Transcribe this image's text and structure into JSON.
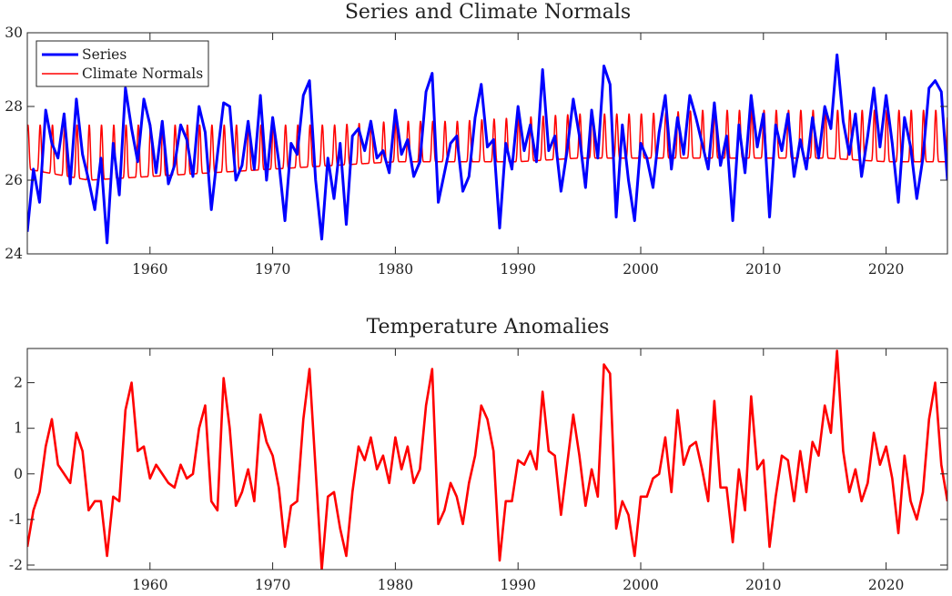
{
  "chart_data": [
    {
      "type": "line",
      "title": "Series and Climate Normals",
      "xlabel": "",
      "ylabel": "",
      "xlim": [
        1950.0,
        2025.0
      ],
      "ylim": [
        24,
        30
      ],
      "xticks": [
        1960,
        1970,
        1980,
        1990,
        2000,
        2010,
        2020
      ],
      "yticks": [
        24,
        26,
        28,
        30
      ],
      "grid": false,
      "legend_position": "top-left",
      "series": [
        {
          "name": "Series",
          "color": "#0000ff",
          "x": [
            1950.0,
            1950.5,
            1951.0,
            1951.5,
            1952.0,
            1952.5,
            1953.0,
            1953.5,
            1954.0,
            1954.5,
            1955.0,
            1955.5,
            1956.0,
            1956.5,
            1957.0,
            1957.5,
            1958.0,
            1958.5,
            1959.0,
            1959.5,
            1960.0,
            1960.5,
            1961.0,
            1961.5,
            1962.0,
            1962.5,
            1963.0,
            1963.5,
            1964.0,
            1964.5,
            1965.0,
            1965.5,
            1966.0,
            1966.5,
            1967.0,
            1967.5,
            1968.0,
            1968.5,
            1969.0,
            1969.5,
            1970.0,
            1970.5,
            1971.0,
            1971.5,
            1972.0,
            1972.5,
            1973.0,
            1973.5,
            1974.0,
            1974.5,
            1975.0,
            1975.5,
            1976.0,
            1976.5,
            1977.0,
            1977.5,
            1978.0,
            1978.5,
            1979.0,
            1979.5,
            1980.0,
            1980.5,
            1981.0,
            1981.5,
            1982.0,
            1982.5,
            1983.0,
            1983.5,
            1984.0,
            1984.5,
            1985.0,
            1985.5,
            1986.0,
            1986.5,
            1987.0,
            1987.5,
            1988.0,
            1988.5,
            1989.0,
            1989.5,
            1990.0,
            1990.5,
            1991.0,
            1991.5,
            1992.0,
            1992.5,
            1993.0,
            1993.5,
            1994.0,
            1994.5,
            1995.0,
            1995.5,
            1996.0,
            1996.5,
            1997.0,
            1997.5,
            1998.0,
            1998.5,
            1999.0,
            1999.5,
            2000.0,
            2000.5,
            2001.0,
            2001.5,
            2002.0,
            2002.5,
            2003.0,
            2003.5,
            2004.0,
            2004.5,
            2005.0,
            2005.5,
            2006.0,
            2006.5,
            2007.0,
            2007.5,
            2008.0,
            2008.5,
            2009.0,
            2009.5,
            2010.0,
            2010.5,
            2011.0,
            2011.5,
            2012.0,
            2012.5,
            2013.0,
            2013.5,
            2014.0,
            2014.5,
            2015.0,
            2015.5,
            2016.0,
            2016.5,
            2017.0,
            2017.5,
            2018.0,
            2018.5,
            2019.0,
            2019.5,
            2020.0,
            2020.5,
            2021.0,
            2021.5,
            2022.0,
            2022.5,
            2023.0,
            2023.5,
            2024.0,
            2024.5,
            2025.0
          ],
          "values": [
            24.6,
            26.3,
            25.4,
            27.9,
            27.0,
            26.6,
            27.8,
            25.9,
            28.2,
            26.7,
            26.0,
            25.2,
            26.6,
            24.3,
            27.0,
            25.6,
            28.5,
            27.4,
            26.5,
            28.2,
            27.5,
            26.2,
            27.6,
            25.9,
            26.4,
            27.5,
            27.1,
            26.1,
            28.0,
            27.3,
            25.2,
            26.7,
            28.1,
            28.0,
            26.0,
            26.4,
            27.6,
            26.3,
            28.3,
            26.0,
            27.7,
            26.5,
            24.9,
            27.0,
            26.7,
            28.3,
            28.7,
            26.0,
            24.4,
            26.6,
            25.5,
            27.0,
            24.8,
            27.2,
            27.4,
            26.8,
            27.6,
            26.6,
            26.8,
            26.2,
            27.9,
            26.7,
            27.1,
            26.1,
            26.5,
            28.4,
            28.9,
            25.4,
            26.2,
            27.0,
            27.2,
            25.7,
            26.1,
            27.7,
            28.6,
            26.9,
            27.1,
            24.7,
            27.0,
            26.3,
            28.0,
            26.8,
            27.5,
            26.5,
            29.0,
            26.8,
            27.2,
            25.7,
            26.8,
            28.2,
            27.2,
            25.8,
            27.9,
            26.6,
            29.1,
            28.6,
            25.0,
            27.5,
            26.0,
            24.9,
            27.0,
            26.6,
            25.8,
            27.3,
            28.3,
            26.3,
            27.7,
            26.7,
            28.3,
            27.7,
            27.0,
            26.3,
            28.1,
            26.4,
            27.2,
            24.9,
            27.5,
            26.2,
            28.3,
            26.9,
            27.8,
            25.0,
            27.5,
            26.8,
            27.8,
            26.1,
            27.1,
            26.3,
            27.7,
            26.6,
            28.0,
            27.4,
            29.4,
            27.6,
            26.7,
            27.8,
            26.1,
            27.2,
            28.5,
            26.9,
            28.3,
            27.0,
            25.4,
            27.7,
            26.9,
            25.5,
            26.6,
            28.5,
            28.7,
            28.4,
            26.0
          ]
        },
        {
          "name": "Climate Normals",
          "color": "#ff0000",
          "period_years": 1,
          "x": [
            1950.0,
            1955.0,
            1960.0,
            1965.0,
            1970.0,
            1975.0,
            1980.0,
            1985.0,
            1990.0,
            1995.0,
            2000.0,
            2005.0,
            2010.0,
            2015.0,
            2020.0,
            2025.0
          ],
          "annual_min": [
            26.3,
            26.0,
            26.1,
            26.2,
            26.3,
            26.4,
            26.5,
            26.5,
            26.5,
            26.6,
            26.6,
            26.6,
            26.6,
            26.6,
            26.5,
            26.5
          ],
          "annual_max": [
            27.5,
            27.5,
            27.5,
            27.5,
            27.5,
            27.5,
            27.6,
            27.6,
            27.7,
            27.8,
            27.8,
            27.9,
            27.9,
            27.9,
            27.9,
            27.9
          ]
        }
      ]
    },
    {
      "type": "line",
      "title": "Temperature Anomalies",
      "xlabel": "",
      "ylabel": "",
      "xlim": [
        1950.0,
        2025.0
      ],
      "ylim": [
        -2.1,
        2.75
      ],
      "xticks": [
        1960,
        1970,
        1980,
        1990,
        2000,
        2010,
        2020
      ],
      "yticks": [
        -2,
        -1,
        0,
        1,
        2
      ],
      "grid": false,
      "series": [
        {
          "name": "",
          "color": "#ff0000",
          "x": [
            1950.0,
            1950.5,
            1951.0,
            1951.5,
            1952.0,
            1952.5,
            1953.0,
            1953.5,
            1954.0,
            1954.5,
            1955.0,
            1955.5,
            1956.0,
            1956.5,
            1957.0,
            1957.5,
            1958.0,
            1958.5,
            1959.0,
            1959.5,
            1960.0,
            1960.5,
            1961.0,
            1961.5,
            1962.0,
            1962.5,
            1963.0,
            1963.5,
            1964.0,
            1964.5,
            1965.0,
            1965.5,
            1966.0,
            1966.5,
            1967.0,
            1967.5,
            1968.0,
            1968.5,
            1969.0,
            1969.5,
            1970.0,
            1970.5,
            1971.0,
            1971.5,
            1972.0,
            1972.5,
            1973.0,
            1973.5,
            1974.0,
            1974.5,
            1975.0,
            1975.5,
            1976.0,
            1976.5,
            1977.0,
            1977.5,
            1978.0,
            1978.5,
            1979.0,
            1979.5,
            1980.0,
            1980.5,
            1981.0,
            1981.5,
            1982.0,
            1982.5,
            1983.0,
            1983.5,
            1984.0,
            1984.5,
            1985.0,
            1985.5,
            1986.0,
            1986.5,
            1987.0,
            1987.5,
            1988.0,
            1988.5,
            1989.0,
            1989.5,
            1990.0,
            1990.5,
            1991.0,
            1991.5,
            1992.0,
            1992.5,
            1993.0,
            1993.5,
            1994.0,
            1994.5,
            1995.0,
            1995.5,
            1996.0,
            1996.5,
            1997.0,
            1997.5,
            1998.0,
            1998.5,
            1999.0,
            1999.5,
            2000.0,
            2000.5,
            2001.0,
            2001.5,
            2002.0,
            2002.5,
            2003.0,
            2003.5,
            2004.0,
            2004.5,
            2005.0,
            2005.5,
            2006.0,
            2006.5,
            2007.0,
            2007.5,
            2008.0,
            2008.5,
            2009.0,
            2009.5,
            2010.0,
            2010.5,
            2011.0,
            2011.5,
            2012.0,
            2012.5,
            2013.0,
            2013.5,
            2014.0,
            2014.5,
            2015.0,
            2015.5,
            2016.0,
            2016.5,
            2017.0,
            2017.5,
            2018.0,
            2018.5,
            2019.0,
            2019.5,
            2020.0,
            2020.5,
            2021.0,
            2021.5,
            2022.0,
            2022.5,
            2023.0,
            2023.5,
            2024.0,
            2024.5,
            2025.0
          ],
          "values": [
            -1.6,
            -0.8,
            -0.4,
            0.6,
            1.2,
            0.2,
            0.0,
            -0.2,
            0.9,
            0.5,
            -0.8,
            -0.6,
            -0.6,
            -1.8,
            -0.5,
            -0.6,
            1.4,
            2.0,
            0.5,
            0.6,
            -0.1,
            0.2,
            0.0,
            -0.2,
            -0.3,
            0.2,
            -0.1,
            0.0,
            1.0,
            1.5,
            -0.6,
            -0.8,
            2.1,
            1.0,
            -0.7,
            -0.4,
            0.1,
            -0.6,
            1.3,
            0.7,
            0.4,
            -0.3,
            -1.6,
            -0.7,
            -0.6,
            1.2,
            2.3,
            0.1,
            -2.1,
            -0.5,
            -0.4,
            -1.2,
            -1.8,
            -0.4,
            0.6,
            0.3,
            0.8,
            0.1,
            0.4,
            -0.2,
            0.8,
            0.1,
            0.6,
            -0.2,
            0.1,
            1.5,
            2.3,
            -1.1,
            -0.8,
            -0.2,
            -0.5,
            -1.1,
            -0.2,
            0.4,
            1.5,
            1.2,
            0.5,
            -1.9,
            -0.6,
            -0.6,
            0.3,
            0.2,
            0.5,
            0.1,
            1.8,
            0.5,
            0.4,
            -0.9,
            0.2,
            1.3,
            0.4,
            -0.7,
            0.1,
            -0.5,
            2.4,
            2.2,
            -1.2,
            -0.6,
            -0.9,
            -1.8,
            -0.5,
            -0.5,
            -0.1,
            0.0,
            0.8,
            -0.4,
            1.4,
            0.2,
            0.6,
            0.7,
            0.1,
            -0.6,
            1.6,
            -0.3,
            -0.3,
            -1.5,
            0.1,
            -0.8,
            1.7,
            0.1,
            0.3,
            -1.6,
            -0.5,
            0.4,
            0.3,
            -0.6,
            0.5,
            -0.4,
            0.7,
            0.4,
            1.5,
            0.9,
            2.7,
            0.5,
            -0.4,
            0.1,
            -0.6,
            -0.2,
            0.9,
            0.2,
            0.6,
            -0.1,
            -1.3,
            0.4,
            -0.6,
            -1.0,
            -0.4,
            1.2,
            2.0,
            0.2,
            -0.6
          ]
        }
      ]
    }
  ]
}
